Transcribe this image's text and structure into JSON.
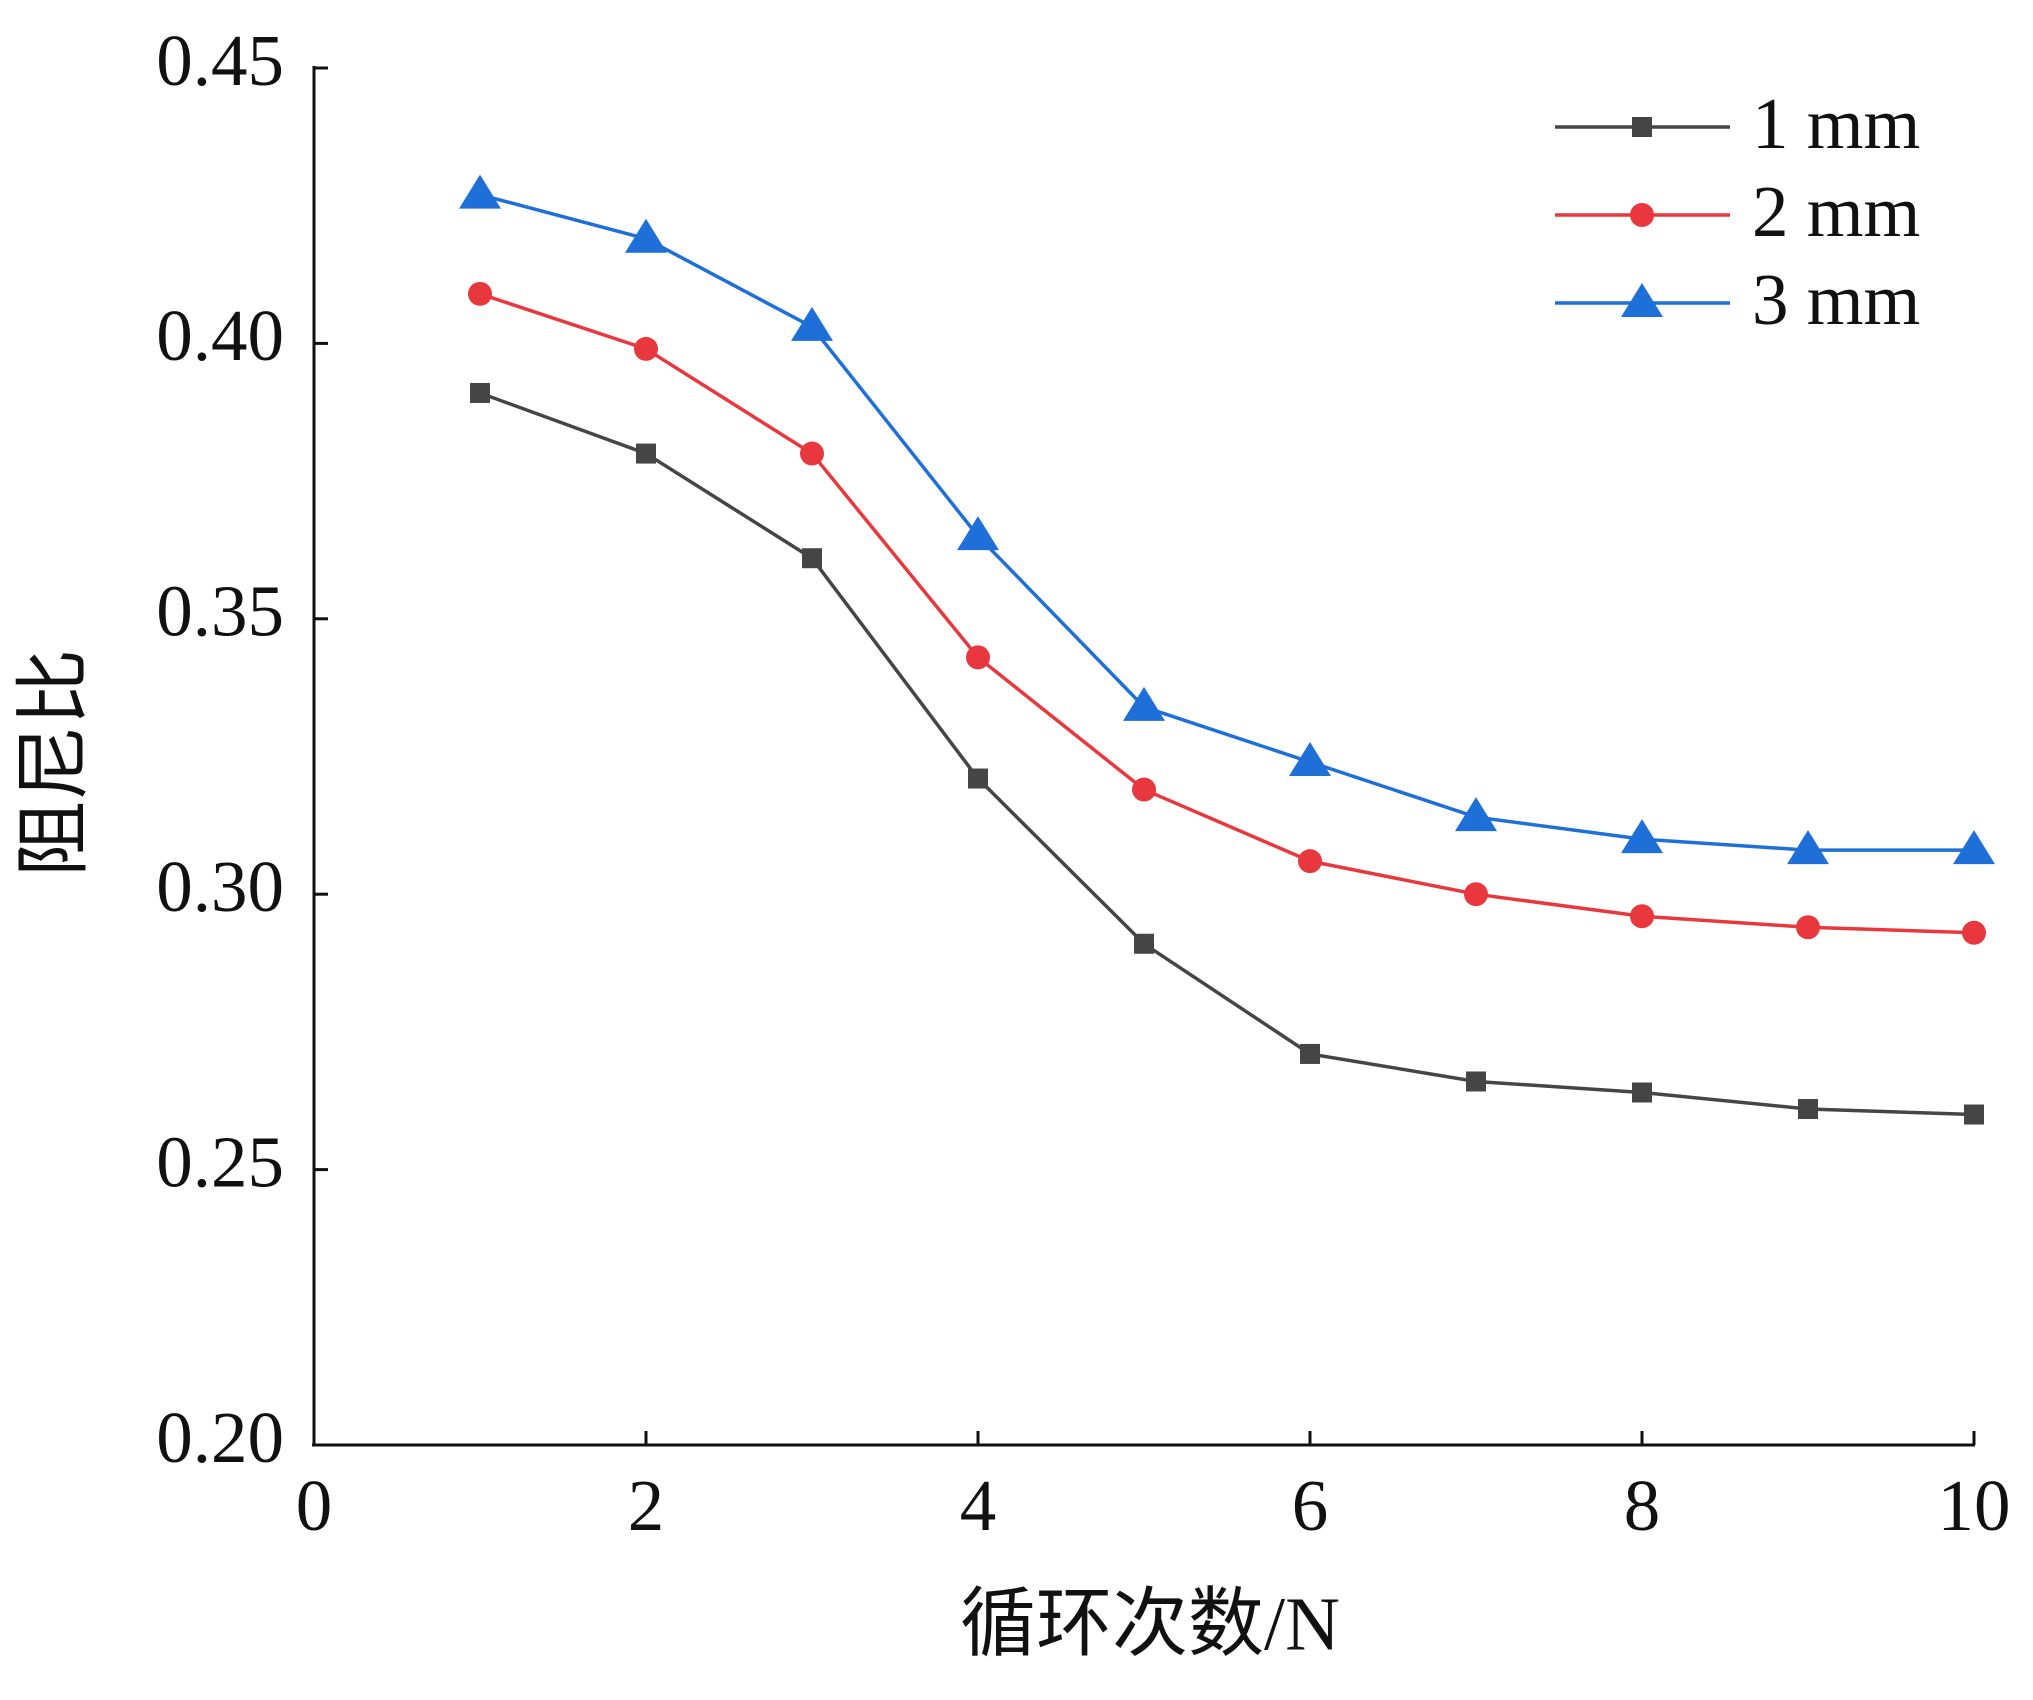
{
  "chart_data": {
    "type": "line",
    "x_label": "循环次数/N",
    "y_label": "阻尼比",
    "x": [
      1,
      2,
      3,
      4,
      5,
      6,
      7,
      8,
      9,
      10
    ],
    "series": [
      {
        "name": "1 mm",
        "color": "#454545",
        "marker": "square",
        "values": [
          0.391,
          0.38,
          0.361,
          0.321,
          0.291,
          0.271,
          0.266,
          0.264,
          0.261,
          0.26
        ]
      },
      {
        "name": "2 mm",
        "color": "#e8383d",
        "marker": "circle",
        "values": [
          0.409,
          0.399,
          0.38,
          0.343,
          0.319,
          0.306,
          0.3,
          0.296,
          0.294,
          0.293
        ]
      },
      {
        "name": "3 mm",
        "color": "#1f6fd8",
        "marker": "triangle",
        "values": [
          0.427,
          0.419,
          0.403,
          0.365,
          0.334,
          0.324,
          0.314,
          0.31,
          0.308,
          0.308
        ]
      }
    ],
    "xlim": [
      0,
      10
    ],
    "xticks": [
      0,
      2,
      4,
      6,
      8,
      10
    ],
    "ylim": [
      0.2,
      0.45
    ],
    "yticks": [
      {
        "value": 0.2,
        "label": "0.20"
      },
      0.25,
      {
        "value": 0.3,
        "label": "0.30"
      },
      0.35,
      {
        "value": 0.4,
        "label": "0.40"
      },
      0.45
    ],
    "grid": false,
    "legend": "upper right"
  }
}
